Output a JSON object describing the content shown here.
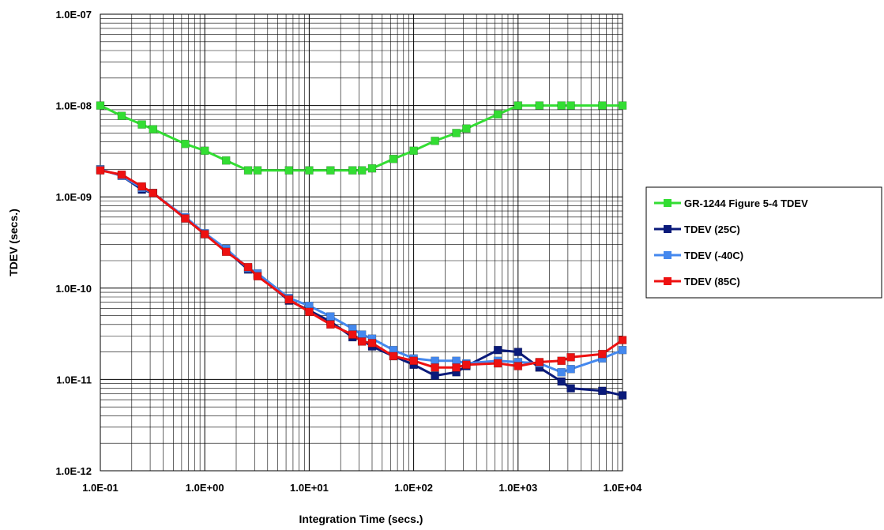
{
  "chart_data": {
    "type": "line",
    "title": "",
    "xlabel": "Integration Time (secs.)",
    "ylabel": "TDEV (secs.)",
    "x_scale": "log",
    "y_scale": "log",
    "xlim": [
      0.1,
      10000
    ],
    "ylim": [
      1e-12,
      1e-07
    ],
    "grid": true,
    "legend_position": "right",
    "x_ticks": [
      {
        "value": 0.1,
        "label": "1.0E-01"
      },
      {
        "value": 1,
        "label": "1.0E+00"
      },
      {
        "value": 10,
        "label": "1.0E+01"
      },
      {
        "value": 100,
        "label": "1.0E+02"
      },
      {
        "value": 1000,
        "label": "1.0E+03"
      },
      {
        "value": 10000,
        "label": "1.0E+04"
      }
    ],
    "y_ticks": [
      {
        "value": 1e-12,
        "label": "1.0E-12"
      },
      {
        "value": 1e-11,
        "label": "1.0E-11"
      },
      {
        "value": 1e-10,
        "label": "1.0E-10"
      },
      {
        "value": 1e-09,
        "label": "1.0E-09"
      },
      {
        "value": 1e-08,
        "label": "1.0E-08"
      },
      {
        "value": 1e-07,
        "label": "1.0E-07"
      }
    ],
    "series": [
      {
        "name": "GR-1244 Figure 5-4 TDEV",
        "color": "#33dd33",
        "points": [
          [
            0.1,
            1e-08
          ],
          [
            0.16,
            7.7e-09
          ],
          [
            0.25,
            6.2e-09
          ],
          [
            0.32,
            5.5e-09
          ],
          [
            0.65,
            3.8e-09
          ],
          [
            1.0,
            3.2e-09
          ],
          [
            1.6,
            2.5e-09
          ],
          [
            2.6,
            1.95e-09
          ],
          [
            3.2,
            1.95e-09
          ],
          [
            6.4,
            1.95e-09
          ],
          [
            10,
            1.95e-09
          ],
          [
            16,
            1.95e-09
          ],
          [
            26,
            1.95e-09
          ],
          [
            32,
            1.95e-09
          ],
          [
            40,
            2.05e-09
          ],
          [
            64,
            2.6e-09
          ],
          [
            100,
            3.2e-09
          ],
          [
            160,
            4.1e-09
          ],
          [
            256,
            5e-09
          ],
          [
            320,
            5.6e-09
          ],
          [
            640,
            8e-09
          ],
          [
            1000,
            1e-08
          ],
          [
            1600,
            1e-08
          ],
          [
            2600,
            1e-08
          ],
          [
            3200,
            1e-08
          ],
          [
            6400,
            1e-08
          ],
          [
            10000,
            1e-08
          ]
        ]
      },
      {
        "name": "TDEV (25C)",
        "color": "#0a1a7a",
        "points": [
          [
            0.1,
            2e-09
          ],
          [
            0.16,
            1.7e-09
          ],
          [
            0.25,
            1.2e-09
          ],
          [
            0.32,
            1.1e-09
          ],
          [
            0.65,
            5.8e-10
          ],
          [
            1.0,
            3.9e-10
          ],
          [
            1.6,
            2.6e-10
          ],
          [
            2.6,
            1.6e-10
          ],
          [
            3.2,
            1.4e-10
          ],
          [
            6.4,
            7.3e-11
          ],
          [
            10,
            5.7e-11
          ],
          [
            16,
            4.3e-11
          ],
          [
            26,
            2.9e-11
          ],
          [
            32,
            2.7e-11
          ],
          [
            40,
            2.3e-11
          ],
          [
            64,
            1.8e-11
          ],
          [
            100,
            1.45e-11
          ],
          [
            160,
            1.1e-11
          ],
          [
            256,
            1.2e-11
          ],
          [
            320,
            1.4e-11
          ],
          [
            640,
            2.1e-11
          ],
          [
            1000,
            2e-11
          ],
          [
            1600,
            1.35e-11
          ],
          [
            2600,
            9.5e-12
          ],
          [
            3200,
            8e-12
          ],
          [
            6400,
            7.5e-12
          ],
          [
            10000,
            6.7e-12
          ]
        ]
      },
      {
        "name": "TDEV (-40C)",
        "color": "#4488ee",
        "points": [
          [
            0.1,
            2e-09
          ],
          [
            0.16,
            1.7e-09
          ],
          [
            0.25,
            1.25e-09
          ],
          [
            0.32,
            1.1e-09
          ],
          [
            0.65,
            6e-10
          ],
          [
            1.0,
            4e-10
          ],
          [
            1.6,
            2.7e-10
          ],
          [
            2.6,
            1.65e-10
          ],
          [
            3.2,
            1.45e-10
          ],
          [
            6.4,
            7.8e-11
          ],
          [
            10,
            6.4e-11
          ],
          [
            16,
            4.9e-11
          ],
          [
            26,
            3.6e-11
          ],
          [
            32,
            3.1e-11
          ],
          [
            40,
            2.8e-11
          ],
          [
            64,
            2.1e-11
          ],
          [
            100,
            1.7e-11
          ],
          [
            160,
            1.6e-11
          ],
          [
            256,
            1.6e-11
          ],
          [
            320,
            1.5e-11
          ],
          [
            640,
            1.6e-11
          ],
          [
            1000,
            1.55e-11
          ],
          [
            1600,
            1.5e-11
          ],
          [
            2600,
            1.2e-11
          ],
          [
            3200,
            1.3e-11
          ],
          [
            6400,
            1.7e-11
          ],
          [
            10000,
            2.1e-11
          ]
        ]
      },
      {
        "name": "TDEV (85C)",
        "color": "#ee1111",
        "points": [
          [
            0.1,
            1.95e-09
          ],
          [
            0.16,
            1.75e-09
          ],
          [
            0.25,
            1.3e-09
          ],
          [
            0.32,
            1.1e-09
          ],
          [
            0.65,
            5.8e-10
          ],
          [
            1.0,
            3.9e-10
          ],
          [
            1.6,
            2.5e-10
          ],
          [
            2.6,
            1.7e-10
          ],
          [
            3.2,
            1.35e-10
          ],
          [
            6.4,
            7.5e-11
          ],
          [
            10,
            5.5e-11
          ],
          [
            16,
            4e-11
          ],
          [
            26,
            3.1e-11
          ],
          [
            32,
            2.6e-11
          ],
          [
            40,
            2.5e-11
          ],
          [
            64,
            1.8e-11
          ],
          [
            100,
            1.6e-11
          ],
          [
            160,
            1.35e-11
          ],
          [
            256,
            1.35e-11
          ],
          [
            320,
            1.45e-11
          ],
          [
            640,
            1.5e-11
          ],
          [
            1000,
            1.4e-11
          ],
          [
            1600,
            1.55e-11
          ],
          [
            2600,
            1.6e-11
          ],
          [
            3200,
            1.75e-11
          ],
          [
            6400,
            1.9e-11
          ],
          [
            10000,
            2.7e-11
          ]
        ]
      }
    ]
  }
}
